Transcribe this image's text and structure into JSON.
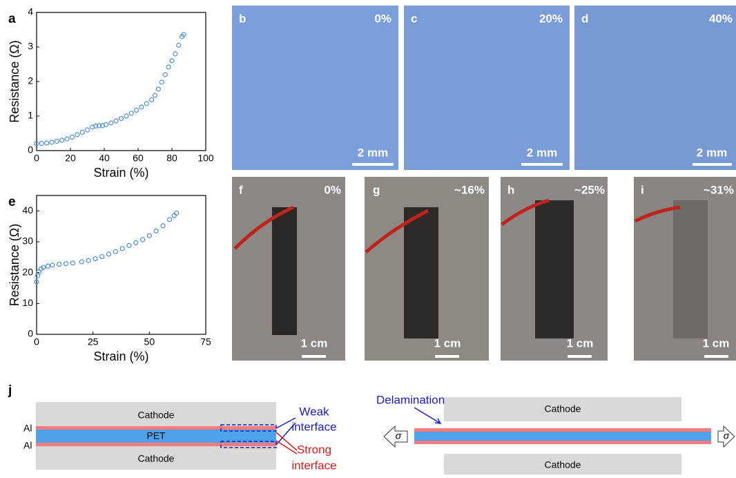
{
  "chart_data": [
    {
      "type": "scatter",
      "panel_label": "a",
      "x_label": "Strain (%)",
      "y_label": "Resistance (Ω)",
      "color": "#4a8fe0",
      "x": [
        0,
        3,
        6,
        9,
        12,
        15,
        18,
        21,
        24,
        27,
        30,
        33,
        35,
        37,
        39,
        41,
        44,
        47,
        50,
        53,
        56,
        59,
        62,
        65,
        68,
        70,
        72,
        74,
        76,
        78,
        80,
        82,
        84,
        86,
        87
      ],
      "values": [
        0.2,
        0.21,
        0.22,
        0.24,
        0.27,
        0.3,
        0.34,
        0.39,
        0.46,
        0.53,
        0.6,
        0.68,
        0.71,
        0.72,
        0.72,
        0.75,
        0.8,
        0.86,
        0.93,
        1.0,
        1.08,
        1.17,
        1.26,
        1.36,
        1.47,
        1.6,
        1.78,
        1.98,
        2.2,
        2.42,
        2.6,
        2.8,
        3.05,
        3.3,
        3.36
      ],
      "xlim": [
        0,
        100
      ],
      "xticks": [
        0,
        20,
        40,
        60,
        80,
        100
      ],
      "ylim": [
        0,
        4
      ],
      "yticks": [
        0,
        1,
        2,
        3,
        4
      ]
    },
    {
      "type": "scatter",
      "panel_label": "e",
      "x_label": "Strain (%)",
      "y_label": "Resistance (Ω)",
      "color": "#4a8fe0",
      "x": [
        0,
        0.5,
        1,
        2,
        3,
        5,
        7,
        10,
        13,
        16,
        20,
        23,
        26,
        29,
        32,
        35,
        38,
        41,
        44,
        47,
        50,
        53,
        56,
        59,
        61,
        62
      ],
      "values": [
        17,
        19,
        20.3,
        21.2,
        21.7,
        22.1,
        22.4,
        22.7,
        22.9,
        23.1,
        23.5,
        23.9,
        24.5,
        25.2,
        26,
        26.8,
        27.8,
        28.8,
        29.7,
        30.7,
        32,
        33.5,
        35.2,
        37.2,
        38.5,
        39.3
      ],
      "xlim": [
        0,
        75
      ],
      "xticks": [
        0,
        25,
        50,
        75
      ],
      "ylim": [
        0,
        45
      ],
      "yticks": [
        0,
        10,
        20,
        30,
        40
      ]
    }
  ],
  "panels": [
    {
      "label": "b",
      "strain": "0%",
      "scale": "2 mm"
    },
    {
      "label": "c",
      "strain": "20%",
      "scale": "2 mm"
    },
    {
      "label": "d",
      "strain": "40%",
      "scale": "2 mm"
    },
    {
      "label": "f",
      "strain": "0%",
      "scale": "1 cm"
    },
    {
      "label": "g",
      "strain": "~16%",
      "scale": "1 cm"
    },
    {
      "label": "h",
      "strain": "~25%",
      "scale": "1 cm"
    },
    {
      "label": "i",
      "strain": "~31%",
      "scale": "1 cm"
    }
  ],
  "diagram": {
    "label": "j",
    "cathode": "Cathode",
    "al": "Al",
    "pet": "PET",
    "weak": [
      "Weak",
      "interface"
    ],
    "strong": [
      "Strong",
      "interface"
    ],
    "delamination": "Delamination",
    "sigma": "σ"
  }
}
